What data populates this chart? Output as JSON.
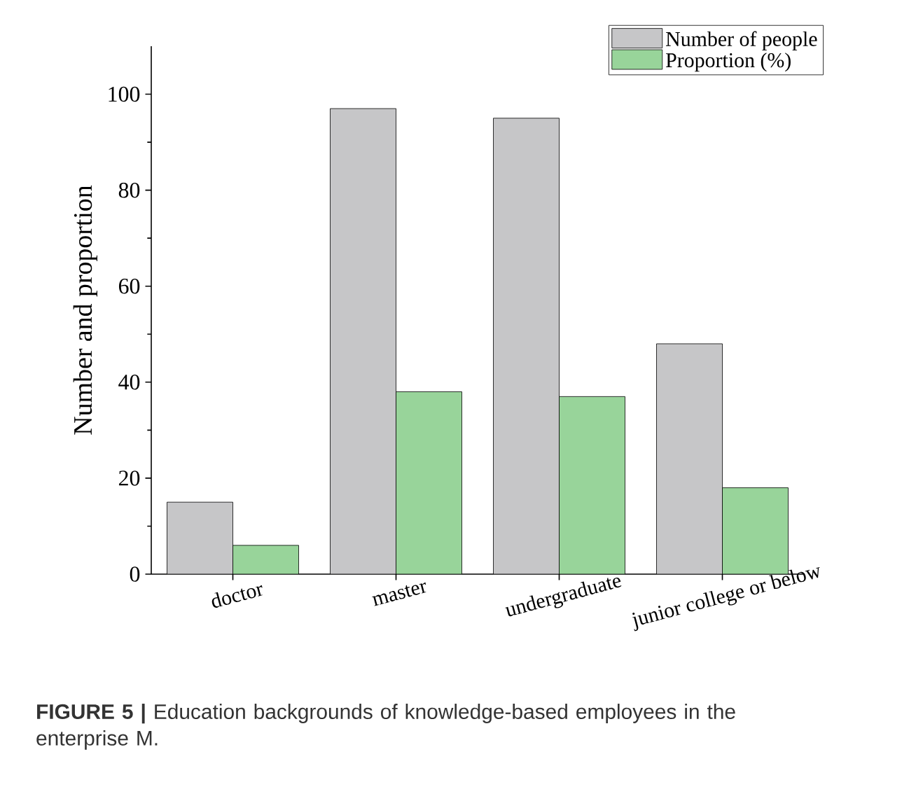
{
  "chart_data": {
    "type": "bar",
    "ylabel": "Number and proportion",
    "categories": [
      "doctor",
      "master",
      "undergraduate",
      "junior college or below"
    ],
    "series": [
      {
        "name": "Number of people",
        "color": "#c6c6c8",
        "values": [
          15,
          97,
          95,
          48
        ]
      },
      {
        "name": "Proportion (%)",
        "color": "#98d49a",
        "values": [
          6,
          38,
          37,
          18
        ]
      }
    ],
    "ylim": [
      0,
      110
    ],
    "yticks": [
      0,
      20,
      40,
      60,
      80,
      100
    ],
    "grid": false,
    "legend": "top right",
    "annotations": [
      "**FIGURE 5 |** Education backgrounds of knowledge-based employees in the enterprise M."
    ]
  }
}
